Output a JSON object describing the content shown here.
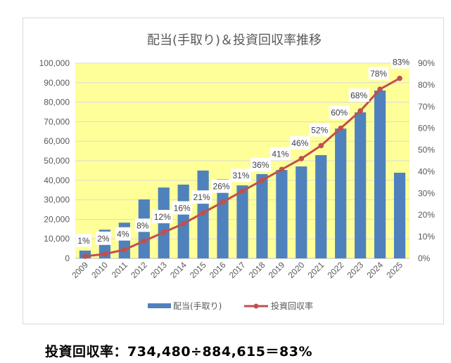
{
  "chart_data": {
    "type": "bar+line",
    "title": "配当(手取り)＆投資回収率推移",
    "categories": [
      "2009",
      "2010",
      "2011",
      "2012",
      "2013",
      "2014",
      "2015",
      "2016",
      "2017",
      "2018",
      "2019",
      "2020",
      "2021",
      "2022",
      "2023",
      "2024",
      "2025"
    ],
    "series": [
      {
        "name": "配当(手取り)",
        "type": "bar",
        "axis": "left",
        "color": "#4f81bd",
        "values": [
          4000,
          14700,
          18300,
          30200,
          36300,
          37800,
          45000,
          40600,
          37400,
          43200,
          45300,
          47100,
          52900,
          66500,
          74800,
          86000,
          43900
        ]
      },
      {
        "name": "投資回収率",
        "type": "line",
        "axis": "right",
        "color": "#c0504d",
        "values": [
          1,
          2,
          4,
          8,
          12,
          16,
          21,
          26,
          31,
          36,
          41,
          46,
          52,
          60,
          68,
          78,
          83
        ],
        "labels": [
          "1%",
          "2%",
          "4%",
          "8%",
          "12%",
          "16%",
          "21%",
          "26%",
          "31%",
          "36%",
          "41%",
          "46%",
          "52%",
          "60%",
          "68%",
          "78%",
          "83%"
        ]
      }
    ],
    "y_left": {
      "min": 0,
      "max": 100000,
      "step": 10000,
      "ticks": [
        "0",
        "10,000",
        "20,000",
        "30,000",
        "40,000",
        "50,000",
        "60,000",
        "70,000",
        "80,000",
        "90,000",
        "100,000"
      ]
    },
    "y_right": {
      "min": 0,
      "max": 90,
      "step": 10,
      "ticks": [
        "0%",
        "10%",
        "20%",
        "30%",
        "40%",
        "50%",
        "60%",
        "70%",
        "80%",
        "90%"
      ]
    },
    "plot_background": "#ffff99",
    "grid": true,
    "legend_position": "bottom"
  },
  "summary": {
    "text": "投資回収率：734,480÷884,615＝83%"
  }
}
